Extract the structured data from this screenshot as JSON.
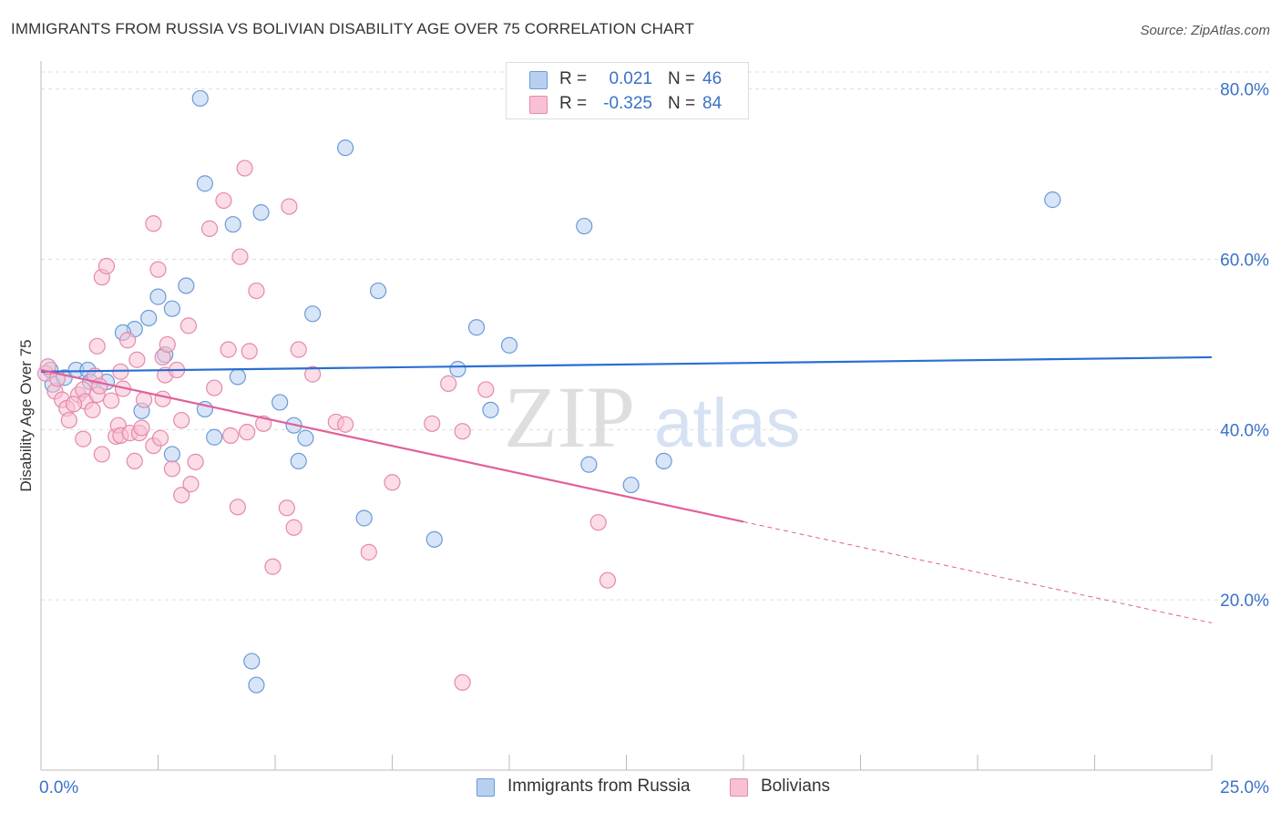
{
  "header": {
    "title": "IMMIGRANTS FROM RUSSIA VS BOLIVIAN DISABILITY AGE OVER 75 CORRELATION CHART",
    "source": "Source: ZipAtlas.com"
  },
  "watermark": {
    "zip": "ZIP",
    "atlas": "atlas"
  },
  "legend_top": {
    "rows": [
      {
        "r_label": "R =",
        "r_value": "0.021",
        "n_label": "N =",
        "n_value": "46"
      },
      {
        "r_label": "R =",
        "r_value": "-0.325",
        "n_label": "N =",
        "n_value": "84"
      }
    ]
  },
  "legend_bottom": {
    "items": [
      {
        "label": "Immigrants from Russia"
      },
      {
        "label": "Bolivians"
      }
    ]
  },
  "colors": {
    "russia_fill": "#b8d0f0",
    "russia_stroke": "#6a9ad8",
    "russia_line": "#2a6fd0",
    "bolivia_fill": "#f8c0d4",
    "bolivia_stroke": "#e48aaa",
    "bolivia_line": "#e0609a",
    "axis_text": "#3a72c8",
    "grid": "#dddddd"
  },
  "chart_data": {
    "type": "scatter",
    "title": "IMMIGRANTS FROM RUSSIA VS BOLIVIAN DISABILITY AGE OVER 75 CORRELATION CHART",
    "xlabel": "",
    "ylabel": "Disability Age Over 75",
    "xlim": [
      0,
      25
    ],
    "ylim": [
      0,
      82
    ],
    "x_tick_labels": [
      {
        "value": 0,
        "label": "0.0%"
      },
      {
        "value": 25,
        "label": "25.0%"
      }
    ],
    "y_tick_labels": [
      {
        "value": 20,
        "label": "20.0%"
      },
      {
        "value": 40,
        "label": "40.0%"
      },
      {
        "value": 60,
        "label": "60.0%"
      },
      {
        "value": 80,
        "label": "80.0%"
      }
    ],
    "grid": true,
    "series": [
      {
        "name": "Immigrants from Russia",
        "R": 0.021,
        "N": 46,
        "trend": {
          "x0": 0,
          "y0": 46.8,
          "x1": 25,
          "y1": 48.5,
          "dashed_from": null
        },
        "points": [
          [
            0.2,
            47.0
          ],
          [
            0.25,
            45.3
          ],
          [
            0.5,
            46.1
          ],
          [
            0.75,
            47.0
          ],
          [
            1.0,
            47.0
          ],
          [
            1.05,
            45.6
          ],
          [
            1.4,
            45.6
          ],
          [
            3.4,
            78.9
          ],
          [
            6.5,
            73.1
          ],
          [
            3.5,
            68.9
          ],
          [
            4.7,
            65.5
          ],
          [
            4.1,
            64.1
          ],
          [
            11.6,
            63.9
          ],
          [
            21.6,
            67.0
          ],
          [
            3.1,
            56.9
          ],
          [
            2.5,
            55.6
          ],
          [
            2.8,
            54.2
          ],
          [
            7.2,
            56.3
          ],
          [
            5.8,
            53.6
          ],
          [
            2.3,
            53.1
          ],
          [
            2.0,
            51.8
          ],
          [
            1.75,
            51.4
          ],
          [
            9.3,
            52.0
          ],
          [
            10.0,
            49.9
          ],
          [
            2.65,
            48.8
          ],
          [
            4.2,
            46.2
          ],
          [
            8.9,
            47.1
          ],
          [
            3.5,
            42.4
          ],
          [
            2.15,
            42.2
          ],
          [
            5.1,
            43.2
          ],
          [
            9.6,
            42.3
          ],
          [
            5.4,
            40.5
          ],
          [
            3.7,
            39.1
          ],
          [
            5.65,
            39.0
          ],
          [
            2.8,
            37.1
          ],
          [
            5.5,
            36.3
          ],
          [
            11.7,
            35.9
          ],
          [
            13.3,
            36.3
          ],
          [
            12.6,
            33.5
          ],
          [
            6.9,
            29.6
          ],
          [
            8.4,
            27.1
          ],
          [
            4.5,
            12.8
          ],
          [
            4.6,
            10.0
          ]
        ]
      },
      {
        "name": "Bolivians",
        "R": -0.325,
        "N": 84,
        "trend": {
          "x0": 0,
          "y0": 47.0,
          "x1": 25,
          "y1": 17.3,
          "dashed_from": 15
        },
        "points": [
          [
            0.1,
            46.6
          ],
          [
            0.15,
            47.4
          ],
          [
            0.3,
            44.5
          ],
          [
            0.45,
            43.5
          ],
          [
            0.55,
            42.5
          ],
          [
            0.6,
            41.1
          ],
          [
            0.8,
            44.1
          ],
          [
            0.9,
            44.7
          ],
          [
            0.95,
            43.3
          ],
          [
            1.1,
            42.3
          ],
          [
            1.15,
            46.3
          ],
          [
            1.2,
            44.1
          ],
          [
            1.25,
            45.1
          ],
          [
            0.9,
            38.9
          ],
          [
            1.3,
            37.1
          ],
          [
            1.6,
            39.2
          ],
          [
            1.65,
            40.5
          ],
          [
            1.7,
            39.3
          ],
          [
            1.9,
            39.6
          ],
          [
            2.0,
            36.3
          ],
          [
            2.1,
            39.6
          ],
          [
            2.15,
            40.2
          ],
          [
            2.2,
            43.5
          ],
          [
            2.4,
            38.1
          ],
          [
            2.55,
            39.0
          ],
          [
            1.2,
            49.8
          ],
          [
            1.3,
            57.9
          ],
          [
            1.4,
            59.2
          ],
          [
            2.05,
            48.2
          ],
          [
            1.85,
            50.5
          ],
          [
            2.65,
            46.4
          ],
          [
            2.6,
            48.5
          ],
          [
            2.7,
            50.0
          ],
          [
            2.8,
            35.4
          ],
          [
            3.0,
            32.3
          ],
          [
            3.2,
            33.6
          ],
          [
            3.3,
            36.2
          ],
          [
            3.15,
            52.2
          ],
          [
            3.6,
            63.6
          ],
          [
            3.7,
            44.9
          ],
          [
            3.9,
            66.9
          ],
          [
            4.0,
            49.4
          ],
          [
            4.05,
            39.3
          ],
          [
            4.25,
            60.3
          ],
          [
            4.35,
            70.7
          ],
          [
            4.4,
            39.7
          ],
          [
            4.45,
            49.2
          ],
          [
            4.6,
            56.3
          ],
          [
            4.75,
            40.7
          ],
          [
            4.2,
            30.9
          ],
          [
            5.3,
            66.2
          ],
          [
            5.4,
            28.5
          ],
          [
            5.25,
            30.8
          ],
          [
            4.95,
            23.9
          ],
          [
            5.5,
            49.4
          ],
          [
            5.8,
            46.5
          ],
          [
            6.3,
            40.9
          ],
          [
            6.5,
            40.6
          ],
          [
            7.0,
            25.6
          ],
          [
            7.5,
            33.8
          ],
          [
            8.35,
            40.7
          ],
          [
            8.7,
            45.4
          ],
          [
            9.0,
            39.8
          ],
          [
            9.5,
            44.7
          ],
          [
            11.9,
            29.1
          ],
          [
            12.1,
            22.3
          ],
          [
            9.0,
            10.3
          ],
          [
            2.4,
            64.2
          ],
          [
            2.5,
            58.8
          ],
          [
            2.6,
            43.6
          ],
          [
            1.7,
            46.8
          ],
          [
            0.35,
            46.0
          ],
          [
            0.7,
            43.0
          ],
          [
            1.5,
            43.4
          ],
          [
            1.75,
            44.8
          ],
          [
            2.9,
            47.0
          ],
          [
            3.0,
            41.1
          ]
        ]
      }
    ]
  }
}
